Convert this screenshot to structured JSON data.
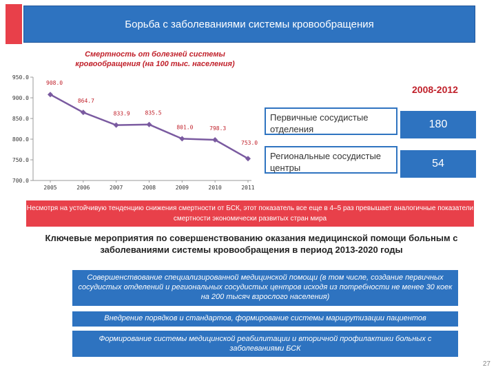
{
  "slide": {
    "title": "Борьба  с заболеваниями системы кровообращения",
    "period": "2008-2012",
    "page_number": "27"
  },
  "stats": [
    {
      "label": "Первичные сосудистые отделения",
      "value": "180"
    },
    {
      "label": "Региональные сосудистые центры",
      "value": "54"
    }
  ],
  "note": "Несмотря на устойчивую тенденцию снижения смертности от БСК, этот показатель все еще в 4–5 раз превышает аналогичные показатели смертности экономически развитых стран мира",
  "heading": "Ключевые мероприятия по совершенствованию оказания медицинской помощи больным с заболеваниями системы кровообращения в период 2013-2020 годы",
  "measures": [
    "Совершенствование специализированной медицинской помощи (в том числе, создание первичных сосудистых отделений и региональных сосудистых центров исходя из потребности не менее 30 коек на 200 тысяч взрослого населения)",
    "Внедрение порядков и стандартов, формирование системы маршрутизации пациентов",
    "Формирование системы медицинской реабилитации и вторичной профилактики больных с заболеваниями БСК"
  ],
  "chart_data": {
    "type": "line",
    "title": "Смертность от болезней системы кровообращения (на 100 тыс. населения)",
    "categories": [
      "2005",
      "2006",
      "2007",
      "2008",
      "2009",
      "2010",
      "2011"
    ],
    "series": [
      {
        "values": [
          908.0,
          864.7,
          833.9,
          835.5,
          801.0,
          798.3,
          753.0
        ],
        "labels": [
          "908.0",
          "864.7",
          "833.9",
          "835.5",
          "801.0",
          "798.3",
          "753.0"
        ]
      }
    ],
    "ylim": [
      700,
      950
    ],
    "yticks": [
      "700.0",
      "750.0",
      "800.0",
      "850.0",
      "900.0",
      "950.0"
    ],
    "grid": false,
    "colors": {
      "line": "#7a5aa0",
      "marker": "#7a5aa0",
      "labels": "#c0202a"
    }
  }
}
